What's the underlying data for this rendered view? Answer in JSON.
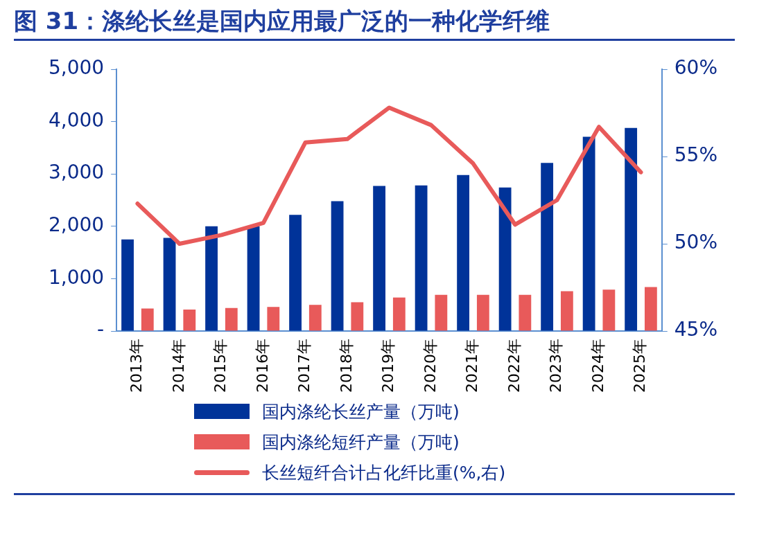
{
  "chart_data": {
    "type": "bar",
    "title": "图 31：涤纶长丝是国内应用最广泛的一种化学纤维",
    "categories": [
      "2013年",
      "2014年",
      "2015年",
      "2016年",
      "2017年",
      "2018年",
      "2019年",
      "2020年",
      "2021年",
      "2022年",
      "2023年",
      "2024年",
      "2025年"
    ],
    "series": [
      {
        "name": "国内涤纶长丝产量（万吨)",
        "color": "#003399",
        "values": [
          1750,
          1780,
          2000,
          2000,
          2220,
          2480,
          2770,
          2780,
          2980,
          2740,
          3210,
          3710,
          3880
        ]
      },
      {
        "name": "国内涤纶短纤产量（万吨)",
        "color": "#e85a5a",
        "values": [
          430,
          410,
          440,
          460,
          500,
          550,
          640,
          690,
          690,
          690,
          760,
          790,
          840
        ]
      },
      {
        "name": "长丝短纤合计占化纤比重(%,右)",
        "type": "line",
        "axis": "y2",
        "color": "#e85a5a",
        "values": [
          52.3,
          50.0,
          50.5,
          51.2,
          55.8,
          56.0,
          57.8,
          56.8,
          54.6,
          51.1,
          52.5,
          56.7,
          54.1
        ]
      }
    ],
    "ylim": [
      0,
      5000
    ],
    "yticks": [
      {
        "value": 0,
        "label": "-"
      },
      {
        "value": 1000,
        "label": "1,000"
      },
      {
        "value": 2000,
        "label": "2,000"
      },
      {
        "value": 3000,
        "label": "3,000"
      },
      {
        "value": 4000,
        "label": "4,000"
      },
      {
        "value": 5000,
        "label": "5,000"
      }
    ],
    "y2lim": [
      45,
      60
    ],
    "y2ticks": [
      {
        "value": 45,
        "label": "45%"
      },
      {
        "value": 50,
        "label": "50%"
      },
      {
        "value": 55,
        "label": "55%"
      },
      {
        "value": 60,
        "label": "60%"
      }
    ],
    "grid": false,
    "legend": "bottom",
    "marker": "none"
  }
}
